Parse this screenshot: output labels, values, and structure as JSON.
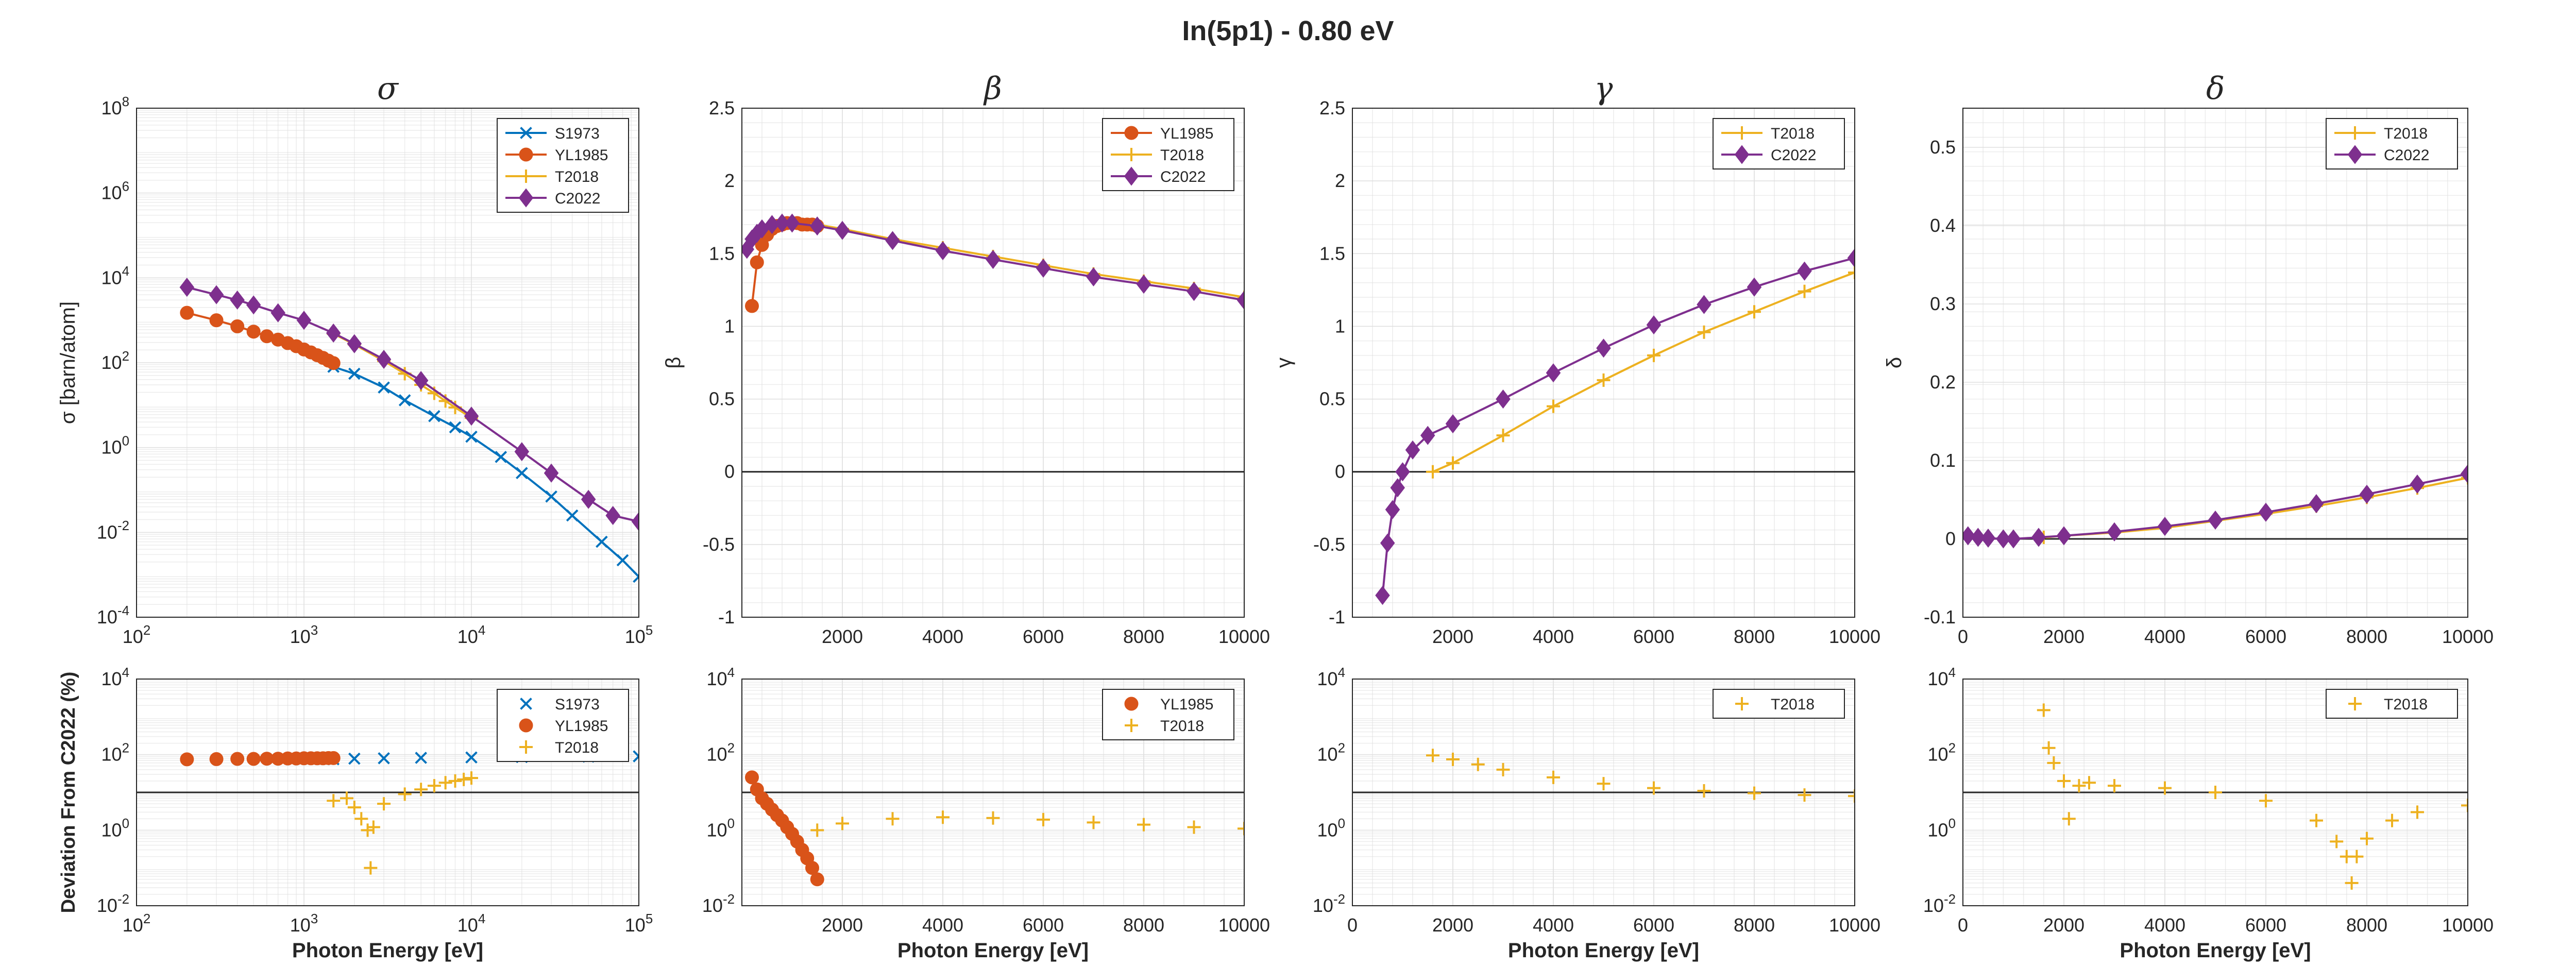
{
  "figure": {
    "title": "In(5p1) - 0.80 eV",
    "xlabel": "Photon Energy [eV]",
    "dev_ylabel": "Deviation From C2022 (%)"
  },
  "colors": {
    "S1973": "#0072BD",
    "YL1985": "#D95319",
    "T2018": "#EDB120",
    "C2022": "#7E2F8E",
    "zero_line": "#262626",
    "grid": "#dfdfdf",
    "axis": "#262626"
  },
  "markers": {
    "S1973": "x",
    "YL1985": "circle",
    "T2018": "plus",
    "C2022": "diamond"
  },
  "chart_data": [
    {
      "id": "sigma",
      "type": "line",
      "title": "σ",
      "ylabel": "σ [barn/atom]",
      "xscale": "log",
      "yscale": "log",
      "xlim": [
        100,
        100000
      ],
      "ylim": [
        0.0001,
        100000000
      ],
      "xticks": [
        100,
        1000,
        10000,
        100000
      ],
      "xtick_labels": [
        "10^2",
        "10^3",
        "10^4",
        "10^5"
      ],
      "yticks": [
        0.0001,
        0.01,
        1,
        100,
        10000,
        1000000,
        100000000
      ],
      "ytick_labels": [
        "10^-4",
        "10^-2",
        "10^0",
        "10^2",
        "10^4",
        "10^6",
        "10^8"
      ],
      "legend": [
        "S1973",
        "YL1985",
        "T2018",
        "C2022"
      ],
      "legend_position": "top-right",
      "series": [
        {
          "name": "S1973",
          "x": [
            1500,
            2000,
            3000,
            4000,
            6000,
            8000,
            10000,
            15000,
            20000,
            30000,
            40000,
            60000,
            80000,
            100000
          ],
          "y": [
            80,
            55,
            26,
            13,
            5.5,
            3.0,
            1.8,
            0.6,
            0.25,
            0.07,
            0.025,
            0.006,
            0.0022,
            0.0009
          ]
        },
        {
          "name": "YL1985",
          "x": [
            200,
            300,
            400,
            500,
            600,
            700,
            800,
            900,
            1000,
            1100,
            1200,
            1300,
            1400,
            1500
          ],
          "y": [
            1500,
            1000,
            720,
            540,
            420,
            350,
            290,
            245,
            205,
            175,
            150,
            130,
            112,
            98
          ]
        },
        {
          "name": "T2018",
          "x": [
            1500,
            2000,
            3000,
            4000,
            5000,
            6000,
            7000,
            8000,
            10000
          ],
          "y": [
            480,
            270,
            110,
            55,
            30,
            19,
            12.5,
            8.8,
            5
          ]
        },
        {
          "name": "C2022",
          "x": [
            200,
            300,
            400,
            500,
            700,
            1000,
            1500,
            2000,
            3000,
            5000,
            10000,
            20000,
            30000,
            50000,
            70000,
            100000
          ],
          "y": [
            6000,
            4000,
            3000,
            2300,
            1500,
            1000,
            500,
            280,
            120,
            38,
            5.5,
            0.8,
            0.25,
            0.06,
            0.025,
            0.018
          ]
        }
      ]
    },
    {
      "id": "beta",
      "type": "line",
      "title": "β",
      "ylabel": "β",
      "xscale": "linear",
      "yscale": "linear",
      "xlim": [
        0,
        10000
      ],
      "ylim": [
        -1,
        2.5
      ],
      "xticks": [
        2000,
        4000,
        6000,
        8000,
        10000
      ],
      "xtick_labels": [
        "2000",
        "4000",
        "6000",
        "8000",
        "10000"
      ],
      "yticks": [
        -1,
        -0.5,
        0,
        0.5,
        1,
        1.5,
        2,
        2.5
      ],
      "ytick_labels": [
        "-1",
        "-0.5",
        "0",
        "0.5",
        "1",
        "1.5",
        "2",
        "2.5"
      ],
      "legend": [
        "YL1985",
        "T2018",
        "C2022"
      ],
      "legend_position": "top-right",
      "zero_line": true,
      "series": [
        {
          "name": "YL1985",
          "x": [
            200,
            300,
            400,
            500,
            600,
            700,
            800,
            900,
            1000,
            1100,
            1200,
            1300,
            1400,
            1500
          ],
          "y": [
            1.14,
            1.44,
            1.56,
            1.63,
            1.67,
            1.69,
            1.7,
            1.71,
            1.71,
            1.71,
            1.7,
            1.7,
            1.7,
            1.69
          ]
        },
        {
          "name": "T2018",
          "x": [
            1500,
            2000,
            3000,
            4000,
            5000,
            6000,
            7000,
            8000,
            9000,
            10000
          ],
          "y": [
            1.7,
            1.67,
            1.6,
            1.54,
            1.48,
            1.42,
            1.36,
            1.31,
            1.26,
            1.2
          ]
        },
        {
          "name": "C2022",
          "x": [
            100,
            200,
            300,
            400,
            600,
            800,
            1000,
            1500,
            2000,
            3000,
            4000,
            5000,
            6000,
            7000,
            8000,
            9000,
            10000
          ],
          "y": [
            1.53,
            1.6,
            1.64,
            1.67,
            1.7,
            1.71,
            1.71,
            1.69,
            1.66,
            1.59,
            1.52,
            1.46,
            1.4,
            1.34,
            1.29,
            1.24,
            1.18
          ]
        }
      ]
    },
    {
      "id": "gamma",
      "type": "line",
      "title": "γ",
      "ylabel": "γ",
      "xscale": "linear",
      "yscale": "linear",
      "xlim": [
        0,
        10000
      ],
      "ylim": [
        -1,
        2.5
      ],
      "xticks": [
        2000,
        4000,
        6000,
        8000,
        10000
      ],
      "xtick_labels": [
        "2000",
        "4000",
        "6000",
        "8000",
        "10000"
      ],
      "yticks": [
        -1,
        -0.5,
        0,
        0.5,
        1,
        1.5,
        2,
        2.5
      ],
      "ytick_labels": [
        "-1",
        "-0.5",
        "0",
        "0.5",
        "1",
        "1.5",
        "2",
        "2.5"
      ],
      "legend": [
        "T2018",
        "C2022"
      ],
      "legend_position": "top-right",
      "zero_line": true,
      "series": [
        {
          "name": "T2018",
          "x": [
            1600,
            2000,
            3000,
            4000,
            5000,
            6000,
            7000,
            8000,
            9000,
            10000
          ],
          "y": [
            0.0,
            0.06,
            0.25,
            0.45,
            0.63,
            0.8,
            0.96,
            1.1,
            1.24,
            1.37
          ]
        },
        {
          "name": "C2022",
          "x": [
            600,
            700,
            800,
            900,
            1000,
            1200,
            1500,
            2000,
            3000,
            4000,
            5000,
            6000,
            7000,
            8000,
            9000,
            10000
          ],
          "y": [
            -0.85,
            -0.49,
            -0.26,
            -0.11,
            0.0,
            0.15,
            0.25,
            0.33,
            0.5,
            0.68,
            0.85,
            1.01,
            1.15,
            1.27,
            1.38,
            1.47
          ]
        }
      ]
    },
    {
      "id": "delta",
      "type": "line",
      "title": "δ",
      "ylabel": "δ",
      "xscale": "linear",
      "yscale": "linear",
      "xlim": [
        0,
        10000
      ],
      "ylim": [
        -0.1,
        0.55
      ],
      "xticks": [
        0,
        2000,
        4000,
        6000,
        8000,
        10000
      ],
      "xtick_labels": [
        "0",
        "2000",
        "4000",
        "6000",
        "8000",
        "10000"
      ],
      "yticks": [
        -0.1,
        0,
        0.1,
        0.2,
        0.3,
        0.4,
        0.5
      ],
      "ytick_labels": [
        "-0.1",
        "0",
        "0.1",
        "0.2",
        "0.3",
        "0.4",
        "0.5"
      ],
      "legend": [
        "T2018",
        "C2022"
      ],
      "legend_position": "top-right",
      "zero_line": true,
      "series": [
        {
          "name": "T2018",
          "x": [
            1600,
            2000,
            3000,
            4000,
            5000,
            6000,
            7000,
            8000,
            9000,
            10000
          ],
          "y": [
            0.002,
            0.004,
            0.008,
            0.014,
            0.023,
            0.032,
            0.042,
            0.053,
            0.065,
            0.078
          ]
        },
        {
          "name": "C2022",
          "x": [
            100,
            300,
            500,
            800,
            1000,
            1500,
            2000,
            3000,
            4000,
            5000,
            6000,
            7000,
            8000,
            9000,
            10000
          ],
          "y": [
            0.004,
            0.002,
            0.001,
            0.0,
            0.0,
            0.002,
            0.004,
            0.009,
            0.016,
            0.024,
            0.034,
            0.045,
            0.057,
            0.07,
            0.083
          ]
        }
      ]
    },
    {
      "id": "dev-sigma",
      "type": "scatter",
      "title": "",
      "ylabel": "Deviation From C2022 (%)",
      "xlabel": "Photon Energy [eV]",
      "xscale": "log",
      "yscale": "log",
      "xlim": [
        100,
        100000
      ],
      "ylim": [
        0.01,
        10000
      ],
      "xticks": [
        100,
        1000,
        10000,
        100000
      ],
      "xtick_labels": [
        "10^2",
        "10^3",
        "10^4",
        "10^5"
      ],
      "yticks": [
        0.01,
        1,
        100,
        10000
      ],
      "ytick_labels": [
        "10^-2",
        "10^0",
        "10^2",
        "10^4"
      ],
      "legend": [
        "S1973",
        "YL1985",
        "T2018"
      ],
      "legend_position": "top-right",
      "ref_line": 10,
      "series": [
        {
          "name": "S1973",
          "x": [
            1500,
            2000,
            3000,
            5000,
            10000,
            20000,
            50000,
            100000
          ],
          "y": [
            75,
            78,
            80,
            82,
            84,
            86,
            88,
            90
          ]
        },
        {
          "name": "YL1985",
          "x": [
            200,
            300,
            400,
            500,
            600,
            700,
            800,
            900,
            1000,
            1100,
            1200,
            1300,
            1400,
            1500
          ],
          "y": [
            75,
            76,
            77,
            77,
            78,
            78,
            79,
            79,
            80,
            80,
            80,
            80,
            81,
            81
          ]
        },
        {
          "name": "T2018",
          "x": [
            1500,
            1800,
            2000,
            2200,
            2400,
            2500,
            2600,
            3000,
            4000,
            5000,
            6000,
            7000,
            8000,
            9000,
            10000
          ],
          "y": [
            6,
            7,
            4,
            2,
            1,
            0.1,
            1.2,
            5,
            9,
            12,
            15,
            18,
            20,
            22,
            24
          ]
        }
      ]
    },
    {
      "id": "dev-beta",
      "type": "scatter",
      "title": "",
      "xlabel": "Photon Energy [eV]",
      "xscale": "linear",
      "yscale": "log",
      "xlim": [
        0,
        10000
      ],
      "ylim": [
        0.01,
        10000
      ],
      "xticks": [
        2000,
        4000,
        6000,
        8000,
        10000
      ],
      "xtick_labels": [
        "2000",
        "4000",
        "6000",
        "8000",
        "10000"
      ],
      "yticks": [
        0.01,
        1,
        100,
        10000
      ],
      "ytick_labels": [
        "10^-2",
        "10^0",
        "10^2",
        "10^4"
      ],
      "legend": [
        "YL1985",
        "T2018"
      ],
      "legend_position": "top-right",
      "ref_line": 10,
      "series": [
        {
          "name": "YL1985",
          "x": [
            200,
            300,
            400,
            500,
            600,
            700,
            800,
            900,
            1000,
            1100,
            1200,
            1300,
            1400,
            1500
          ],
          "y": [
            25,
            12,
            7,
            5,
            3.5,
            2.5,
            1.8,
            1.2,
            0.8,
            0.5,
            0.3,
            0.18,
            0.1,
            0.05
          ]
        },
        {
          "name": "T2018",
          "x": [
            1500,
            2000,
            3000,
            4000,
            5000,
            6000,
            7000,
            8000,
            9000,
            10000
          ],
          "y": [
            1.0,
            1.5,
            2.0,
            2.2,
            2.1,
            1.9,
            1.6,
            1.4,
            1.2,
            1.1
          ]
        }
      ]
    },
    {
      "id": "dev-gamma",
      "type": "scatter",
      "title": "",
      "xlabel": "Photon Energy [eV]",
      "xscale": "linear",
      "yscale": "log",
      "xlim": [
        0,
        10000
      ],
      "ylim": [
        0.01,
        10000
      ],
      "xticks": [
        0,
        2000,
        4000,
        6000,
        8000,
        10000
      ],
      "xtick_labels": [
        "0",
        "2000",
        "4000",
        "6000",
        "8000",
        "10000"
      ],
      "yticks": [
        0.01,
        1,
        100,
        10000
      ],
      "ytick_labels": [
        "10^-2",
        "10^0",
        "10^2",
        "10^4"
      ],
      "legend": [
        "T2018"
      ],
      "legend_position": "top-right",
      "ref_line": 10,
      "series": [
        {
          "name": "T2018",
          "x": [
            1600,
            2000,
            2500,
            3000,
            4000,
            5000,
            6000,
            7000,
            8000,
            9000,
            10000
          ],
          "y": [
            95,
            75,
            55,
            40,
            25,
            17,
            13,
            11,
            9.5,
            8.5,
            8
          ]
        }
      ]
    },
    {
      "id": "dev-delta",
      "type": "scatter",
      "title": "",
      "xlabel": "Photon Energy [eV]",
      "xscale": "linear",
      "yscale": "log",
      "xlim": [
        0,
        10000
      ],
      "ylim": [
        0.01,
        10000
      ],
      "xticks": [
        0,
        2000,
        4000,
        6000,
        8000,
        10000
      ],
      "xtick_labels": [
        "0",
        "2000",
        "4000",
        "6000",
        "8000",
        "10000"
      ],
      "yticks": [
        0.01,
        1,
        100,
        10000
      ],
      "ytick_labels": [
        "10^-2",
        "10^0",
        "10^2",
        "10^4"
      ],
      "legend": [
        "T2018"
      ],
      "legend_position": "top-right",
      "ref_line": 10,
      "series": [
        {
          "name": "T2018",
          "x": [
            1600,
            1700,
            1800,
            2000,
            2100,
            2300,
            2500,
            3000,
            4000,
            5000,
            6000,
            7000,
            7400,
            7600,
            7700,
            7800,
            8000,
            8500,
            9000,
            10000
          ],
          "y": [
            1500,
            150,
            60,
            20,
            2,
            15,
            18,
            15,
            13,
            10,
            6,
            1.8,
            0.5,
            0.2,
            0.04,
            0.2,
            0.6,
            1.8,
            3,
            4.5
          ]
        }
      ]
    }
  ]
}
